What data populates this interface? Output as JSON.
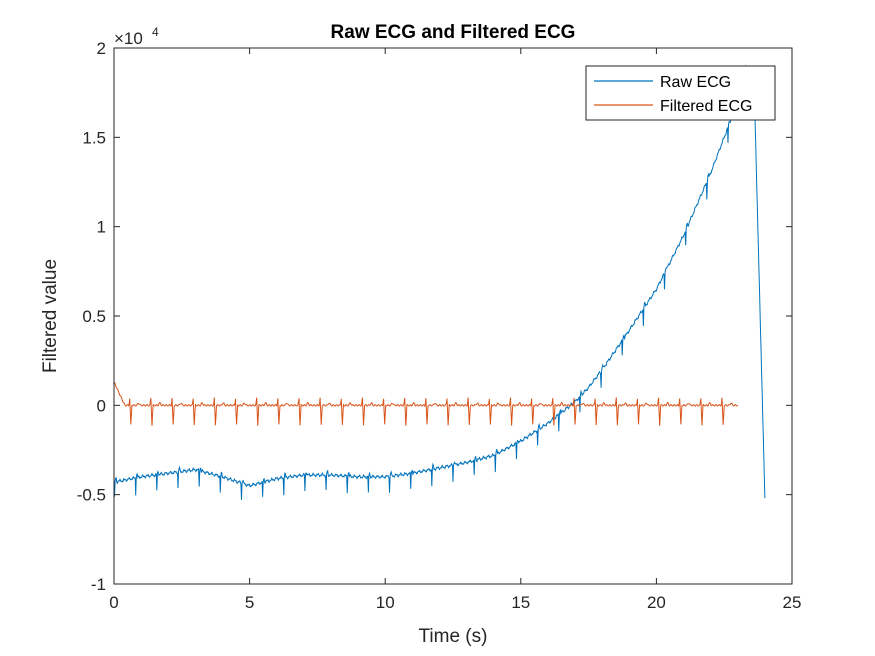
{
  "chart_data": {
    "type": "line",
    "title": "Raw ECG and Filtered ECG",
    "xlabel": "Time (s)",
    "ylabel": "Filtered value",
    "xlim": [
      0,
      25
    ],
    "ylim": [
      -1,
      2
    ],
    "y_exponent_label": "×10",
    "y_exponent_power": "4",
    "x_ticks": [
      "0",
      "5",
      "10",
      "15",
      "20",
      "25"
    ],
    "y_ticks": [
      "-1",
      "-0.5",
      "0",
      "0.5",
      "1",
      "1.5",
      "2"
    ],
    "legend_position": "top-right",
    "series": [
      {
        "name": "Raw ECG",
        "color": "#0072BD",
        "x": [
          0,
          1,
          2,
          3,
          4,
          5,
          6,
          7,
          8,
          9,
          10,
          11,
          12,
          13,
          14,
          15,
          16,
          17,
          17.5,
          18,
          19,
          20,
          21,
          22,
          22.5,
          23,
          23.3,
          23.6,
          24.0
        ],
        "y": [
          -0.43,
          -0.4,
          -0.38,
          -0.36,
          -0.4,
          -0.45,
          -0.41,
          -0.39,
          -0.39,
          -0.4,
          -0.4,
          -0.38,
          -0.35,
          -0.32,
          -0.28,
          -0.2,
          -0.1,
          0.02,
          0.1,
          0.2,
          0.42,
          0.65,
          0.95,
          1.3,
          1.5,
          1.7,
          1.9,
          1.82,
          -0.52
        ],
        "peak_period": 0.78,
        "peak_drop": 0.09
      },
      {
        "name": "Filtered ECG",
        "color": "#D95319",
        "x": [
          0,
          23
        ],
        "y": [
          0.0,
          0.0
        ],
        "start_value": 0.13,
        "peak_period": 0.78,
        "peak_up": 0.04,
        "peak_down": -0.11
      }
    ]
  }
}
